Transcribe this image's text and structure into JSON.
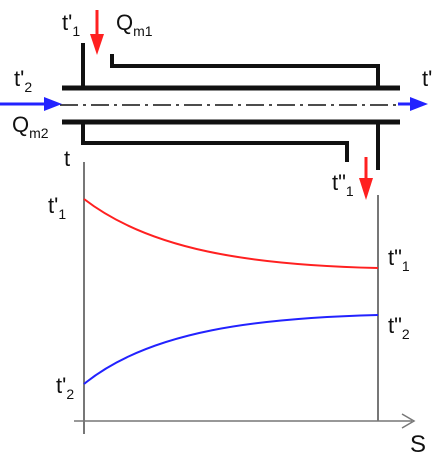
{
  "labels": {
    "t1_in": "t'",
    "t1_in_sub": "1",
    "t1_out": "t\"",
    "t1_out_sub": "1",
    "t2_in": "t'",
    "t2_in_sub": "2",
    "t2_out": "t'",
    "qm1": "Q",
    "qm1_sub": "m1",
    "qm2": "Q",
    "qm2_sub": "m2",
    "axis_t": "t",
    "axis_s": "S",
    "curve_t1_start": "t'",
    "curve_t1_start_sub": "1",
    "curve_t1_end": "t\"",
    "curve_t1_end_sub": "1",
    "curve_t2_start": "t'",
    "curve_t2_start_sub": "2",
    "curve_t2_end": "t\"",
    "curve_t2_end_sub": "2"
  },
  "colors": {
    "hot_fluid": "#ff2020",
    "cold_fluid": "#2222ff",
    "structure": "#111111",
    "axis": "#555555"
  }
}
